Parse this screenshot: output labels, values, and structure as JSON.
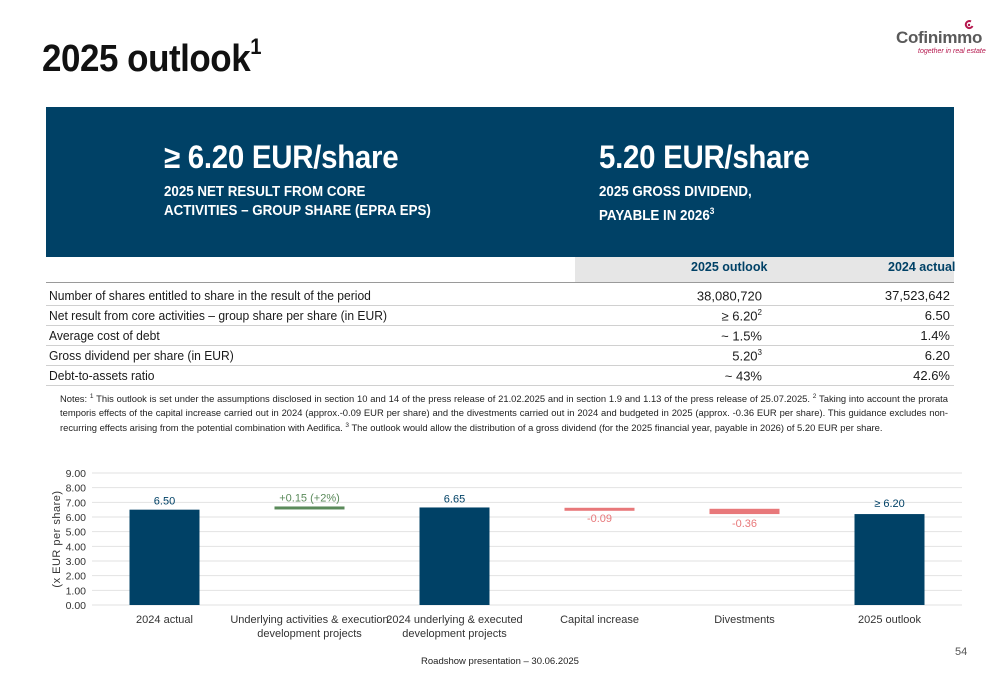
{
  "header": {
    "title": "2025 outlook",
    "title_sup": "1",
    "logo_name": "Cofinimmo",
    "logo_tagline": "together in real estate"
  },
  "kpis": [
    {
      "value": "≥ 6.20 EUR/share",
      "line1": "2025 NET RESULT FROM CORE",
      "line2": "ACTIVITIES – GROUP SHARE (EPRA EPS)",
      "sup": ""
    },
    {
      "value": "5.20 EUR/share",
      "line1": "2025 GROSS DIVIDEND,",
      "line2": "PAYABLE IN 2026",
      "sup": "3"
    }
  ],
  "table": {
    "headers": [
      "2025 outlook",
      "2024 actual"
    ],
    "rows": [
      {
        "label": "Number of shares entitled to share in the result of the period",
        "outlook": "38,080,720",
        "outlook_sup": "",
        "actual": "37,523,642"
      },
      {
        "label": "Net result from core activities – group share per share (in EUR)",
        "outlook": "≥ 6.20",
        "outlook_sup": "2",
        "actual": "6.50"
      },
      {
        "label": "Average cost of debt",
        "outlook": "~ 1.5%",
        "outlook_sup": "",
        "actual": "1.4%"
      },
      {
        "label": "Gross dividend per share (in EUR)",
        "outlook": "5.20",
        "outlook_sup": "3",
        "actual": "6.20"
      },
      {
        "label": "Debt-to-assets ratio",
        "outlook": "~ 43%",
        "outlook_sup": "",
        "actual": "42.6%"
      }
    ]
  },
  "notes": {
    "prefix": "Notes: ",
    "n1": "This outlook is set under the assumptions disclosed in section 10 and 14 of the press release of 21.02.2025 and in section 1.9 and 1.13 of the press release of 25.07.2025. ",
    "n2": "Taking into account the prorata temporis effects of the capital increase carried out in 2024 (approx.-0.09 EUR per share) and the divestments carried out in 2024 and budgeted in 2025 (approx. -0.36 EUR per share). This guidance excludes non-recurring effects arising from the potential combination with Aedifica. ",
    "n3": "The outlook would allow the distribution of a gross dividend (for the 2025 financial year, payable in 2026) of 5.20 EUR per share."
  },
  "chart_data": {
    "type": "bar",
    "subtype": "waterfall",
    "ylabel": "(x EUR per share)",
    "ylim": [
      0,
      9
    ],
    "yticks": [
      "0.00",
      "1.00",
      "2.00",
      "3.00",
      "4.00",
      "5.00",
      "6.00",
      "7.00",
      "8.00",
      "9.00"
    ],
    "grid": true,
    "categories": [
      [
        "2024 actual"
      ],
      [
        "Underlying activities & execution",
        "development projects"
      ],
      [
        "2024 underlying & executed",
        "development projects"
      ],
      [
        "Capital increase"
      ],
      [
        "Divestments"
      ],
      [
        "2025 outlook"
      ]
    ],
    "bars": [
      {
        "kind": "total",
        "start": 0,
        "end": 6.5,
        "label": "6.50",
        "color": "#004166"
      },
      {
        "kind": "delta",
        "start": 6.5,
        "end": 6.65,
        "label": "+0.15 (+2%)",
        "color": "#5a8a5a"
      },
      {
        "kind": "total",
        "start": 0,
        "end": 6.65,
        "label": "6.65",
        "color": "#004166"
      },
      {
        "kind": "delta",
        "start": 6.65,
        "end": 6.56,
        "label": "-0.09",
        "color": "#e8787a"
      },
      {
        "kind": "delta",
        "start": 6.56,
        "end": 6.2,
        "label": "-0.36",
        "color": "#e8787a"
      },
      {
        "kind": "total",
        "start": 0,
        "end": 6.2,
        "label": "≥  6.20",
        "color": "#004166"
      }
    ],
    "colors": {
      "total": "#004166",
      "increase": "#5a8a5a",
      "decrease": "#e8787a",
      "grid": "#e2e2e2",
      "axis_text": "#333333"
    }
  },
  "footer": {
    "text": "Roadshow presentation – 30.06.2025",
    "page": "54"
  }
}
